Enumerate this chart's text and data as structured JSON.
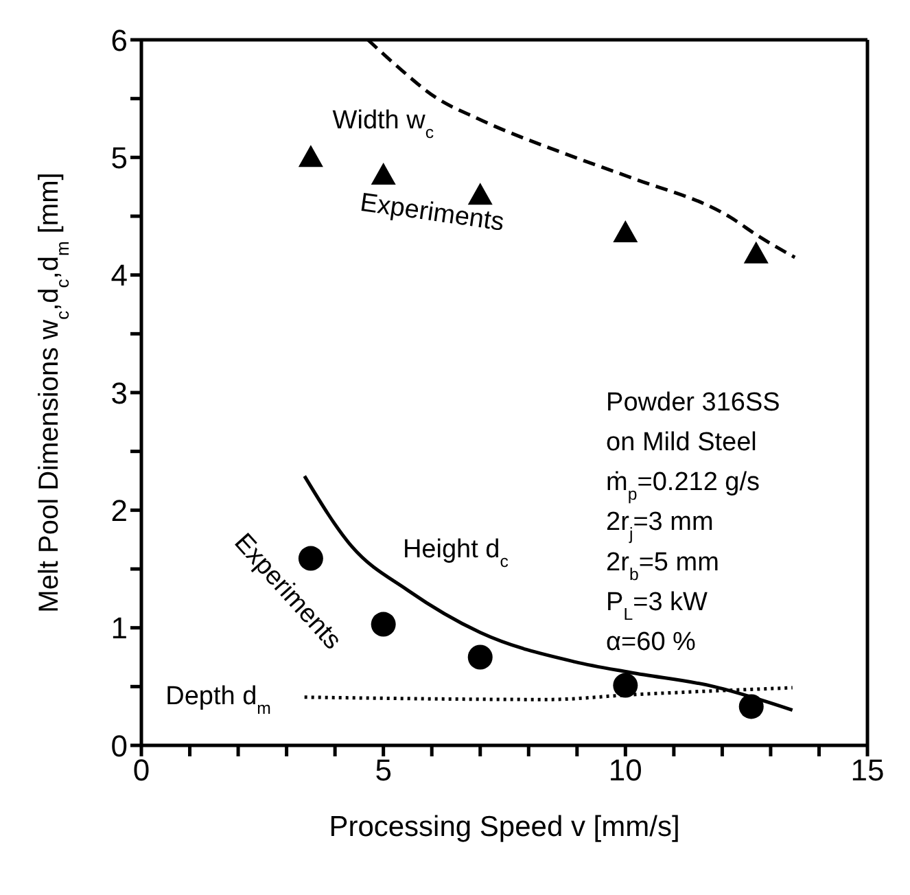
{
  "chart_data": {
    "type": "scatter",
    "xlabel": "Processing Speed  v  [mm/s]",
    "ylabel": "Melt Pool Dimensions  w$_{c}$,d$_{c}$,d$_{m}$  [mm]",
    "xlim": [
      0,
      15
    ],
    "ylim": [
      0,
      6
    ],
    "xticks": [
      0,
      {
        "value": 1,
        "label": null
      },
      {
        "value": 2,
        "label": null
      },
      {
        "value": 3,
        "label": null
      },
      {
        "value": 4,
        "label": null
      },
      5,
      {
        "value": 6,
        "label": null
      },
      {
        "value": 7,
        "label": null
      },
      {
        "value": 8,
        "label": null
      },
      {
        "value": 9,
        "label": null
      },
      10,
      {
        "value": 11,
        "label": null
      },
      {
        "value": 12,
        "label": null
      },
      {
        "value": 13,
        "label": null
      },
      {
        "value": 14,
        "label": null
      },
      15
    ],
    "yticks": [
      0,
      {
        "value": 0.5,
        "label": null
      },
      1,
      {
        "value": 1.5,
        "label": null
      },
      2,
      {
        "value": 2.5,
        "label": null
      },
      3,
      {
        "value": 3.5,
        "label": null
      },
      4,
      {
        "value": 4.5,
        "label": null
      },
      5,
      {
        "value": 5.5,
        "label": null
      },
      6
    ],
    "grid": false,
    "legend": false,
    "series": [
      {
        "marker": "triangle",
        "color": "#000000",
        "x": [
          3.5,
          5,
          7,
          10,
          12.7
        ],
        "values": [
          5.0,
          4.85,
          4.68,
          4.36,
          4.18
        ]
      },
      {
        "marker": "circle",
        "color": "#000000",
        "x": [
          3.5,
          5,
          7,
          10,
          12.6
        ],
        "values": [
          1.59,
          1.03,
          0.75,
          0.51,
          0.33
        ]
      },
      {
        "type": "line",
        "line_style": "dashed",
        "color": "#000000",
        "x": [
          4.68,
          5.27,
          6.08,
          6.95,
          8.96,
          10.1,
          12.17,
          12.75,
          13.5
        ],
        "values": [
          6.0,
          5.78,
          5.51,
          5.33,
          5.0,
          4.83,
          4.49,
          4.33,
          4.15
        ]
      },
      {
        "type": "line",
        "line_style": "solid",
        "color": "#000000",
        "x": [
          3.37,
          4.35,
          5.5,
          7.0,
          8.96,
          10.1,
          11.83,
          13.45
        ],
        "values": [
          2.29,
          1.69,
          1.32,
          0.96,
          0.71,
          0.62,
          0.5,
          0.3
        ]
      },
      {
        "type": "line",
        "line_style": "dotted",
        "color": "#000000",
        "x": [
          3.37,
          8.4,
          10.1,
          13.45
        ],
        "values": [
          0.41,
          0.39,
          0.43,
          0.49
        ]
      }
    ],
    "annotations": [
      "Width w$_{c}$",
      "Experiments",
      "Height d$_{c}$",
      "Experiments",
      "Depth d$_{m}$",
      "Powder 316SS",
      "on Mild Steel",
      "ṁ$_{p}$=0.212 g/s",
      "2r$_{j}$=3 mm",
      "2r$_{b}$=5 mm",
      "P$_{L}$=3 kW",
      "α=60 %"
    ]
  }
}
